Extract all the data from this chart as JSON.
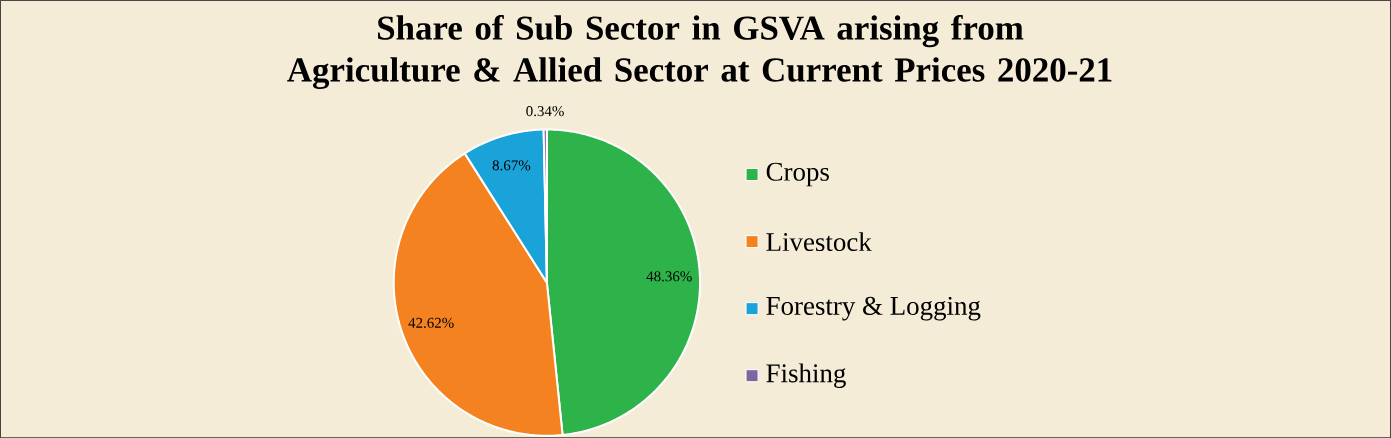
{
  "chart_data": {
    "type": "pie",
    "title": "Share of Sub Sector in GSVA arising from Agriculture & Allied Sector at Current Prices  2020-21",
    "categories": [
      "Crops",
      "Livestock",
      "Forestry & Logging",
      "Fishing"
    ],
    "values": [
      48.36,
      42.62,
      8.67,
      0.34
    ],
    "value_labels": [
      "48.36%",
      "42.62%",
      "8.67%",
      "0.34%"
    ],
    "colors": [
      "#2db34a",
      "#f58220",
      "#1aa3d9",
      "#8064a2"
    ],
    "legend": "right"
  }
}
